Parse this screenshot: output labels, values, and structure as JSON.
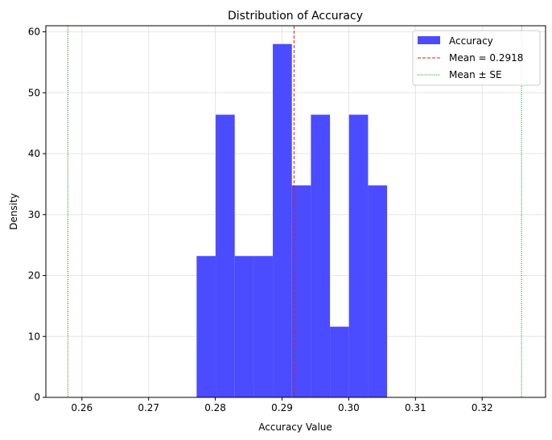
{
  "chart_data": {
    "type": "bar",
    "subtype": "histogram",
    "title": "Distribution of Accuracy",
    "xlabel": "Accuracy Value",
    "ylabel": "Density",
    "xlim": [
      0.2546,
      0.3295
    ],
    "ylim": [
      0,
      61
    ],
    "xticks": [
      "0.26",
      "0.27",
      "0.28",
      "0.29",
      "0.30",
      "0.31",
      "0.32"
    ],
    "yticks": [
      "0",
      "10",
      "20",
      "30",
      "40",
      "50",
      "60"
    ],
    "grid": true,
    "legend_position": "top-right",
    "bin_start": 0.2772,
    "bin_width": 0.002855,
    "densities": [
      23.2,
      46.4,
      23.2,
      23.2,
      58.0,
      34.8,
      46.4,
      11.6,
      46.4,
      34.8
    ],
    "mean": 0.2918,
    "se_lower": 0.2579,
    "se_upper": 0.3259,
    "legend": [
      {
        "label": "Accuracy",
        "color": "#4b4bff",
        "style": "patch"
      },
      {
        "label": "Mean = 0.2918",
        "color": "#e41a1c",
        "style": "dashed"
      },
      {
        "label": "Mean ± SE",
        "color": "#008000",
        "style": "dotted"
      }
    ]
  }
}
